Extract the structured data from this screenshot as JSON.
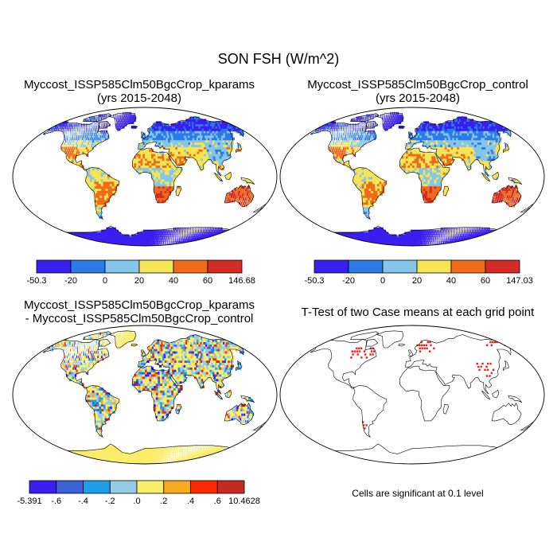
{
  "figure": {
    "title": "SON FSH (W/m^2)",
    "note": "Cells are significant at 0.1 level"
  },
  "panels": [
    {
      "title_line1": "Myccost_ISSP585Clm50BgcCrop_kparams",
      "title_line2": "(yrs 2015-2048)",
      "colorbar": {
        "colors": [
          "#3b1ef0",
          "#2a7ae8",
          "#86c5ea",
          "#f5e454",
          "#f06a1a",
          "#d42b25"
        ],
        "labels": [
          "-50.3",
          "-20",
          "0",
          "20",
          "40",
          "60",
          "146.68"
        ]
      }
    },
    {
      "title_line1": "Myccost_ISSP585Clm50BgcCrop_control",
      "title_line2": "(yrs 2015-2048)",
      "colorbar": {
        "colors": [
          "#3b1ef0",
          "#2a7ae8",
          "#86c5ea",
          "#f5e454",
          "#f06a1a",
          "#d42b25"
        ],
        "labels": [
          "-50.3",
          "-20",
          "0",
          "20",
          "40",
          "60",
          "147.03"
        ]
      }
    },
    {
      "title_line1": "Myccost_ISSP585Clm50BgcCrop_kparams",
      "title_line2": "- Myccost_ISSP585Clm50BgcCrop_control",
      "colorbar": {
        "colors": [
          "#3b1ef0",
          "#3c62d8",
          "#1e9ee8",
          "#96cbe6",
          "#f9ed6a",
          "#f8aa1c",
          "#ff2a00",
          "#c62a22"
        ],
        "labels": [
          "-5.391",
          "-.6",
          "-.4",
          "-.2",
          ".0",
          ".2",
          ".4",
          ".6",
          "10.4628"
        ]
      }
    },
    {
      "title_line1": "T-Test of two Case means at each grid point"
    }
  ],
  "chart_data": [
    {
      "type": "heatmap",
      "title": "Myccost_ISSP585Clm50BgcCrop_kparams (yrs 2015-2048)",
      "projection": "Robinson world map",
      "colorbar_levels": [
        -50.3,
        -20,
        0,
        20,
        40,
        60,
        146.68
      ],
      "colorbar_colors": [
        "#3b1ef0",
        "#2a7ae8",
        "#86c5ea",
        "#f5e454",
        "#f06a1a",
        "#d42b25"
      ]
    },
    {
      "type": "heatmap",
      "title": "Myccost_ISSP585Clm50BgcCrop_control (yrs 2015-2048)",
      "projection": "Robinson world map",
      "colorbar_levels": [
        -50.3,
        -20,
        0,
        20,
        40,
        60,
        147.03
      ],
      "colorbar_colors": [
        "#3b1ef0",
        "#2a7ae8",
        "#86c5ea",
        "#f5e454",
        "#f06a1a",
        "#d42b25"
      ]
    },
    {
      "type": "heatmap",
      "title": "Myccost_ISSP585Clm50BgcCrop_kparams - Myccost_ISSP585Clm50BgcCrop_control",
      "projection": "Robinson world map",
      "colorbar_levels": [
        -5.391,
        -0.6,
        -0.4,
        -0.2,
        0.0,
        0.2,
        0.4,
        0.6,
        10.4628
      ],
      "colorbar_colors": [
        "#3b1ef0",
        "#3c62d8",
        "#1e9ee8",
        "#96cbe6",
        "#f9ed6a",
        "#f8aa1c",
        "#ff2a00",
        "#c62a22"
      ]
    },
    {
      "type": "heatmap",
      "title": "T-Test of two Case means at each grid point",
      "projection": "Robinson world map",
      "significance_level": 0.1,
      "mark_color": "#e8201c"
    }
  ]
}
